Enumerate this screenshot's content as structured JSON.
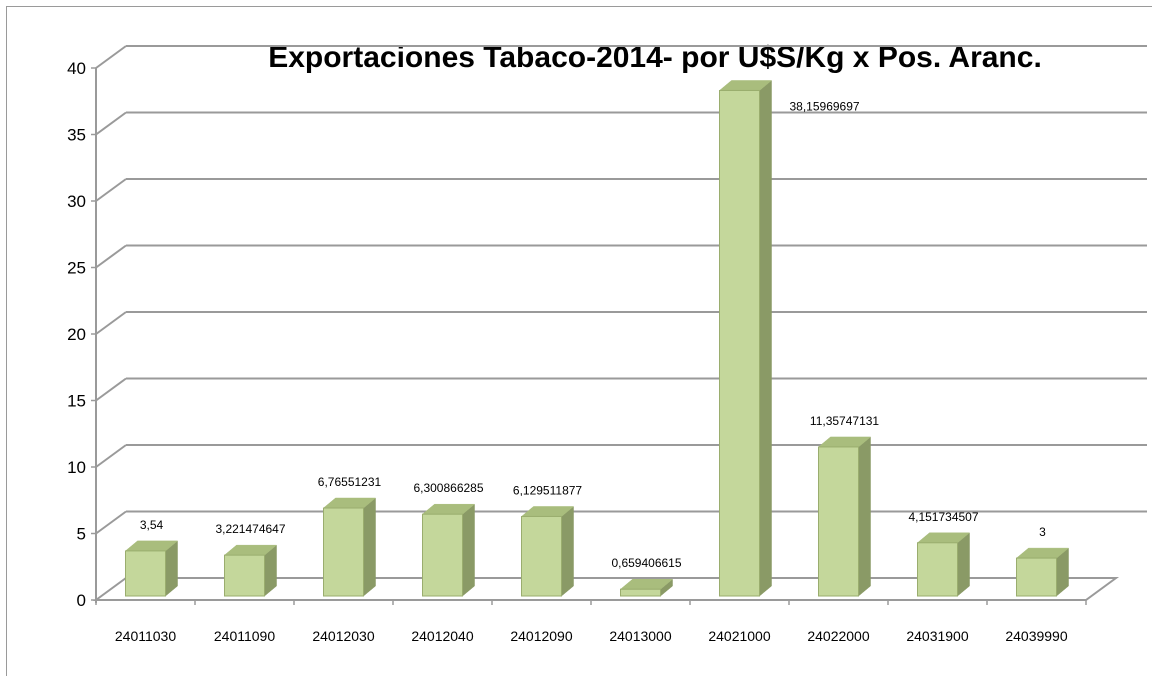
{
  "chart_data": {
    "type": "bar",
    "title": "Exportaciones Tabaco-2014- por U$S/Kg x Pos. Aranc.",
    "xlabel": "",
    "ylabel": "",
    "ylim": [
      0,
      40
    ],
    "yticks": [
      "0",
      "5",
      "10",
      "15",
      "20",
      "25",
      "30",
      "35",
      "40"
    ],
    "categories": [
      "24011030",
      "24011090",
      "24012030",
      "24012040",
      "24012090",
      "24013000",
      "24021000",
      "24022000",
      "24031900",
      "24039990"
    ],
    "values": [
      3.54,
      3.221474647,
      6.76551231,
      6.300866285,
      6.129511877,
      0.659406615,
      38.15969697,
      11.35747131,
      4.151734507,
      3
    ],
    "data_labels": [
      "3,54",
      "3,221474647",
      "6,76551231",
      "6,300866285",
      "6,129511877",
      "0,659406615",
      "38,15969697",
      "11,35747131",
      "4,151734507",
      "3"
    ],
    "grid": true,
    "legend": "none",
    "style": "3d",
    "colors": {
      "bar_front": "#c4d79b",
      "bar_side": "#8a9a66",
      "bar_top": "#a9bd7d",
      "bar_edge": "#9aad6e",
      "grid": "#9a9a9a"
    }
  }
}
